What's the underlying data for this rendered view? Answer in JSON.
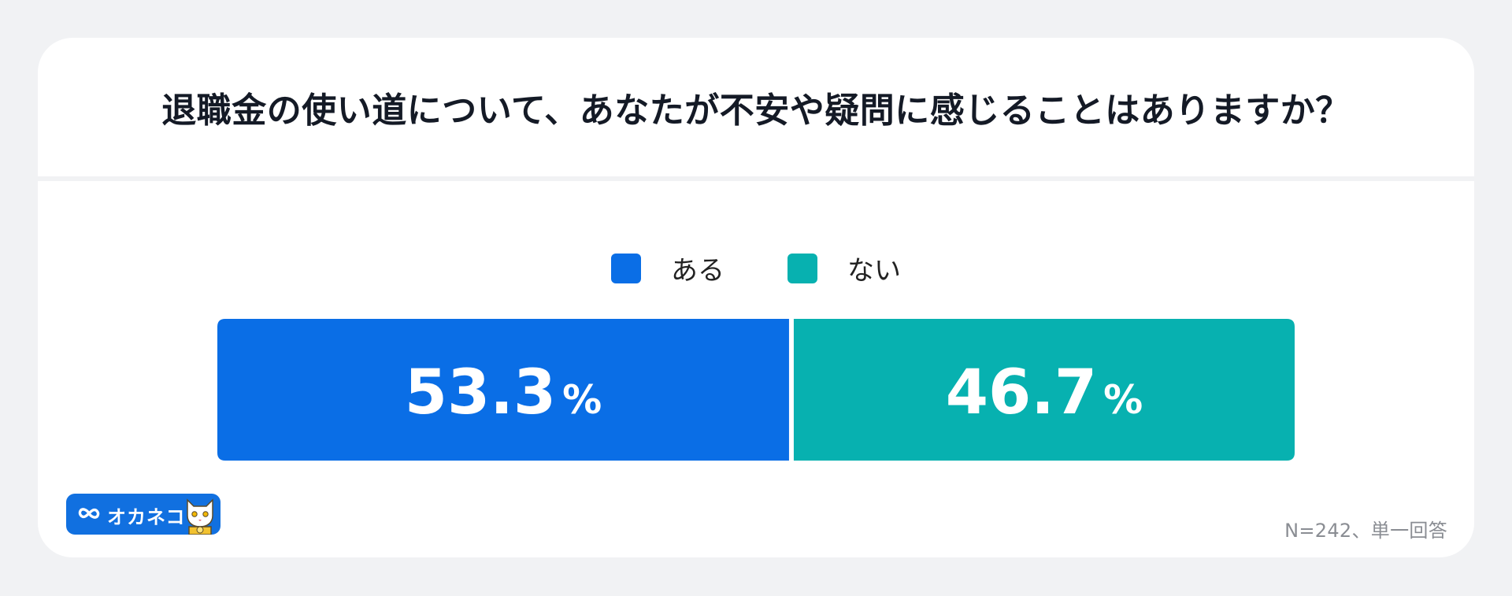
{
  "chart_data": {
    "type": "bar",
    "stacked": true,
    "orientation": "horizontal",
    "title": "退職金の使い道について、あなたが不安や疑問に感じることはありますか？",
    "categories": [
      "ある",
      "ない"
    ],
    "values": [
      53.3,
      46.7
    ],
    "unit": "%",
    "labels": [
      "53.3",
      "46.7"
    ],
    "colors": [
      "#0a6ee6",
      "#07b1b0"
    ],
    "legend_position": "top-center",
    "note": "N=242、単一回答"
  },
  "logo": {
    "text": "オカネコ",
    "icon": "infinity-icon",
    "mascot": "cat-mascot-icon"
  }
}
